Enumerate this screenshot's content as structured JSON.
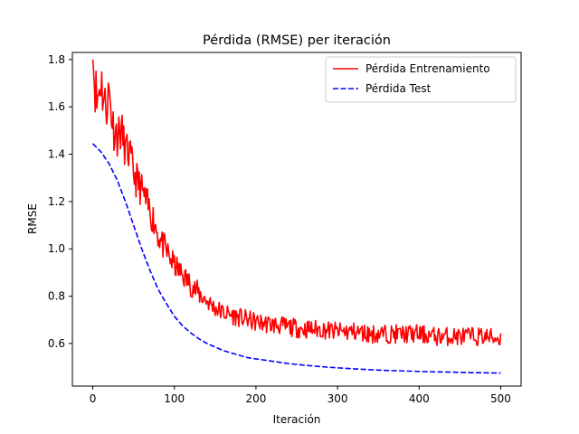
{
  "chart_data": {
    "type": "line",
    "title": "Pérdida (RMSE) per iteración",
    "xlabel": "Iteración",
    "ylabel": "RMSE",
    "xlim": [
      -25,
      525
    ],
    "ylim": [
      0.42,
      1.83
    ],
    "xticks": [
      0,
      100,
      200,
      300,
      400,
      500
    ],
    "yticks": [
      0.6,
      0.8,
      1.0,
      1.2,
      1.4,
      1.6,
      1.8
    ],
    "ytick_labels": [
      "0.6",
      "0.8",
      "1.0",
      "1.2",
      "1.4",
      "1.6",
      "1.8"
    ],
    "grid": false,
    "legend_position": "top-right",
    "series": [
      {
        "name": "Pérdida Entrenamiento",
        "color": "#ff0000",
        "style": "solid",
        "x": [
          0,
          5,
          10,
          15,
          20,
          25,
          30,
          35,
          40,
          45,
          50,
          55,
          60,
          65,
          70,
          75,
          80,
          85,
          90,
          95,
          100,
          110,
          120,
          130,
          140,
          150,
          160,
          170,
          180,
          190,
          200,
          220,
          240,
          260,
          280,
          300,
          320,
          340,
          360,
          380,
          400,
          420,
          440,
          460,
          480,
          500
        ],
        "y": [
          1.8,
          1.62,
          1.72,
          1.6,
          1.66,
          1.52,
          1.48,
          1.5,
          1.42,
          1.4,
          1.32,
          1.28,
          1.25,
          1.2,
          1.16,
          1.12,
          1.06,
          1.02,
          0.99,
          0.96,
          0.93,
          0.89,
          0.85,
          0.81,
          0.78,
          0.75,
          0.73,
          0.72,
          0.71,
          0.7,
          0.69,
          0.68,
          0.67,
          0.66,
          0.66,
          0.65,
          0.65,
          0.64,
          0.64,
          0.64,
          0.64,
          0.63,
          0.63,
          0.63,
          0.63,
          0.62
        ],
        "noise": [
          0.1,
          0.14,
          0.12,
          0.12,
          0.11,
          0.1,
          0.09,
          0.09,
          0.08,
          0.08,
          0.08,
          0.08,
          0.07,
          0.07,
          0.07,
          0.07,
          0.06,
          0.06,
          0.06,
          0.06,
          0.05,
          0.05,
          0.05,
          0.05,
          0.04,
          0.04,
          0.04,
          0.04,
          0.04,
          0.04,
          0.04,
          0.04,
          0.04,
          0.04,
          0.04,
          0.04,
          0.04,
          0.04,
          0.04,
          0.04,
          0.04,
          0.04,
          0.04,
          0.04,
          0.04,
          0.04
        ]
      },
      {
        "name": "Pérdida Test",
        "color": "#0000ff",
        "style": "dashed",
        "x": [
          0,
          10,
          20,
          30,
          40,
          50,
          60,
          70,
          80,
          90,
          100,
          110,
          120,
          130,
          140,
          150,
          160,
          170,
          180,
          190,
          200,
          220,
          240,
          260,
          280,
          300,
          320,
          340,
          360,
          380,
          400,
          420,
          440,
          460,
          480,
          500
        ],
        "y": [
          1.445,
          1.41,
          1.36,
          1.29,
          1.2,
          1.1,
          1.0,
          0.91,
          0.83,
          0.77,
          0.715,
          0.675,
          0.645,
          0.62,
          0.6,
          0.585,
          0.57,
          0.56,
          0.55,
          0.54,
          0.535,
          0.525,
          0.515,
          0.508,
          0.502,
          0.497,
          0.493,
          0.489,
          0.486,
          0.484,
          0.482,
          0.48,
          0.479,
          0.477,
          0.476,
          0.475
        ]
      }
    ]
  }
}
